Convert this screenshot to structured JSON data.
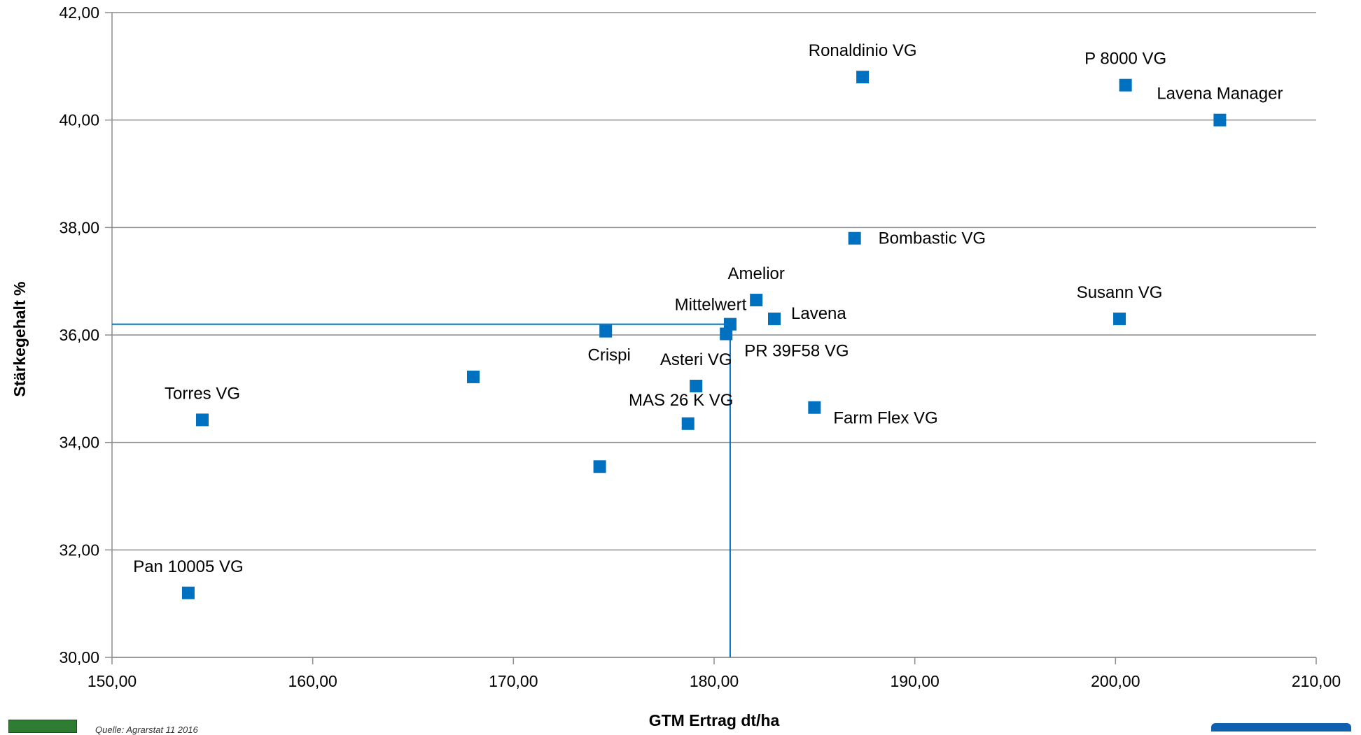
{
  "chart_data": {
    "type": "scatter",
    "xlabel": "GTM Ertrag dt/ha",
    "ylabel": "Stärkegehalt %",
    "xlim": [
      150,
      210
    ],
    "ylim": [
      30,
      42
    ],
    "x_ticks": [
      "150,00",
      "160,00",
      "170,00",
      "180,00",
      "190,00",
      "200,00",
      "210,00"
    ],
    "y_ticks": [
      "30,00",
      "32,00",
      "34,00",
      "36,00",
      "38,00",
      "40,00",
      "42,00"
    ],
    "grid": "horizontal",
    "marker_color": "#0070C0",
    "reference_lines": {
      "x": 180.8,
      "y": 36.2,
      "color": "#0070C0"
    },
    "points": [
      {
        "label": "Ronaldinio VG",
        "x": 187.4,
        "y": 40.8
      },
      {
        "label": "P 8000 VG",
        "x": 200.5,
        "y": 40.65
      },
      {
        "label": "Lavena Manager",
        "x": 205.2,
        "y": 40.0
      },
      {
        "label": "Bombastic VG",
        "x": 187.0,
        "y": 37.8
      },
      {
        "label": "Amelior",
        "x": 182.1,
        "y": 36.65
      },
      {
        "label": "Susann VG",
        "x": 200.2,
        "y": 36.3
      },
      {
        "label": "Lavena",
        "x": 183.0,
        "y": 36.3
      },
      {
        "label": "Mittelwert",
        "x": 180.8,
        "y": 36.2
      },
      {
        "label": "Crispi",
        "x": 174.6,
        "y": 36.07
      },
      {
        "label": "PR 39F58 VG",
        "x": 180.6,
        "y": 36.02
      },
      {
        "label": "",
        "x": 168.0,
        "y": 35.22
      },
      {
        "label": "Asteri VG",
        "x": 179.1,
        "y": 35.05
      },
      {
        "label": "Farm Flex VG",
        "x": 185.0,
        "y": 34.65
      },
      {
        "label": "Torres VG",
        "x": 154.5,
        "y": 34.42
      },
      {
        "label": "MAS 26 K VG",
        "x": 178.7,
        "y": 34.35
      },
      {
        "label": "",
        "x": 174.3,
        "y": 33.55
      },
      {
        "label": "Pan 10005 VG",
        "x": 153.8,
        "y": 31.2
      }
    ]
  },
  "footer": {
    "source_text": "Quelle: Agrarstat 11 2016"
  }
}
